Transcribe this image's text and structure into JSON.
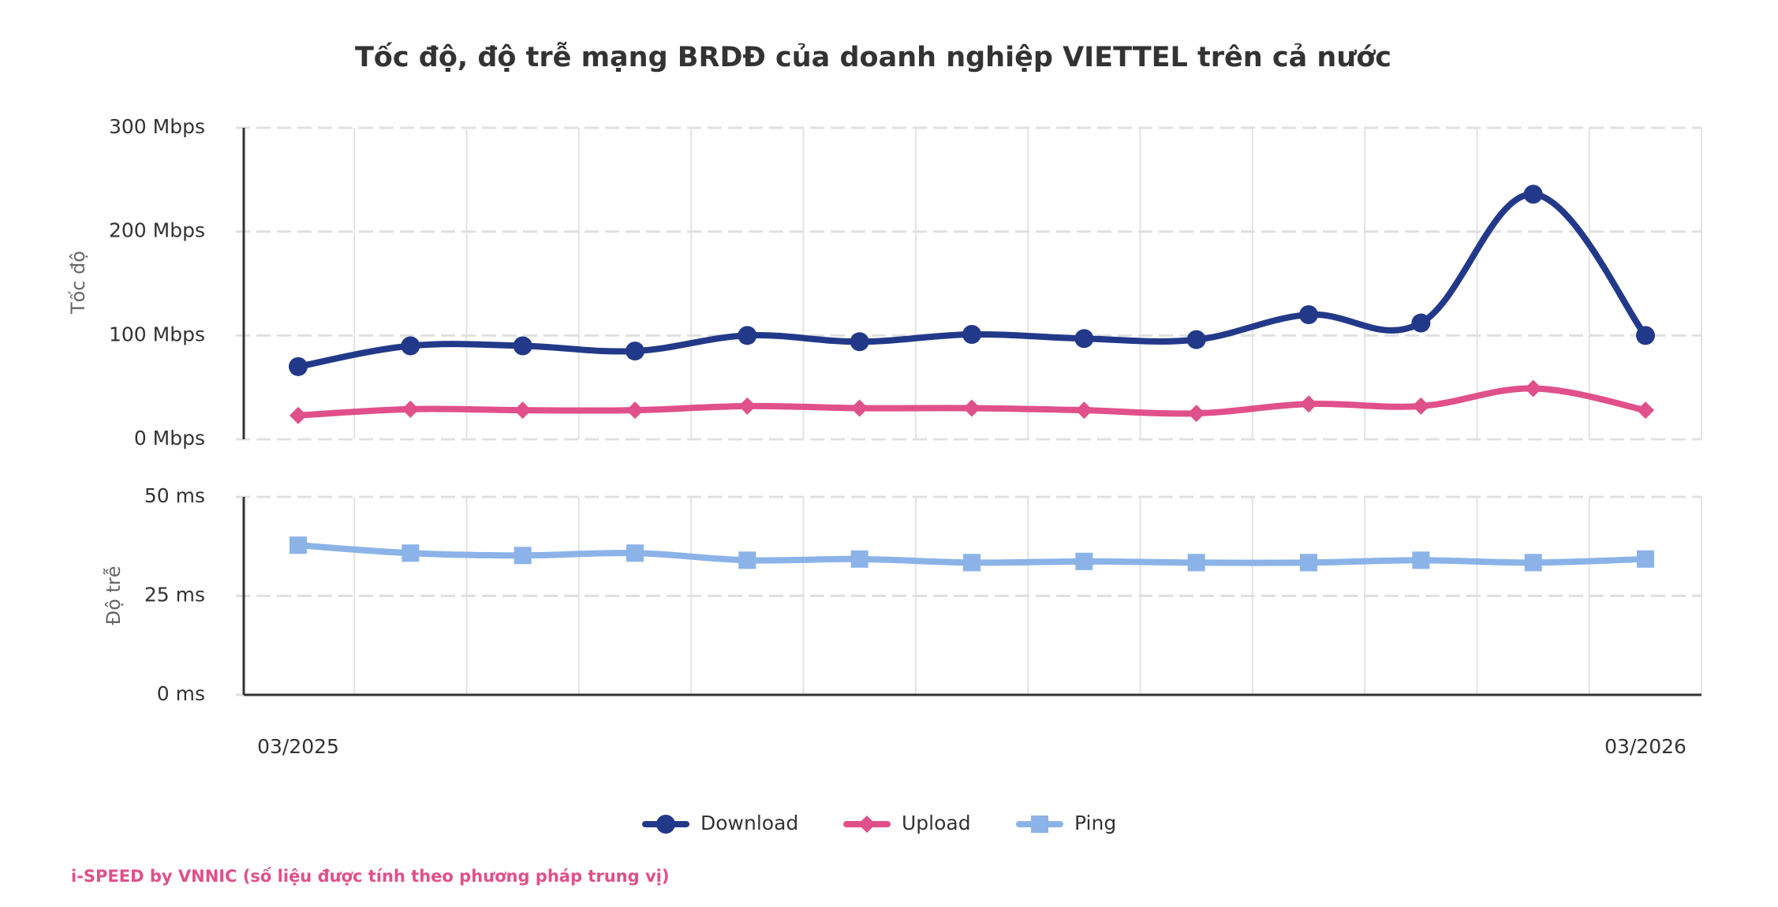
{
  "chart_data": {
    "type": "line",
    "title": "Tốc độ, độ trễ mạng BRDĐ của doanh nghiệp VIETTEL trên cả nước",
    "categories": [
      "03/2025",
      null,
      null,
      null,
      null,
      null,
      null,
      null,
      null,
      null,
      null,
      null,
      "03/2026"
    ],
    "ylabel": "Tốc độ",
    "ylim": [
      0,
      300
    ],
    "yticks": [
      {
        "value": 0,
        "label": "0 Mbps"
      },
      {
        "value": 100,
        "label": "100 Mbps"
      },
      {
        "value": 200,
        "label": "200 Mbps"
      },
      {
        "value": 300,
        "label": "300 Mbps"
      }
    ],
    "y2label": "Độ trễ",
    "y2lim": [
      0,
      50
    ],
    "y2ticks": [
      {
        "value": 0,
        "label": "0 ms"
      },
      {
        "value": 25,
        "label": "25 ms"
      },
      {
        "value": 50,
        "label": "50 ms"
      }
    ],
    "grid": true,
    "legend": "bottom",
    "series": [
      {
        "name": "Download",
        "color": "#22398a",
        "marker": "circle",
        "values": [
          70,
          90,
          90,
          85,
          100,
          94,
          101,
          97,
          96,
          120,
          112,
          236,
          100
        ]
      },
      {
        "name": "Upload",
        "color": "#e0508a",
        "marker": "diamond",
        "values": [
          23,
          29,
          28,
          28,
          32,
          30,
          30,
          28,
          25,
          34,
          32,
          49,
          28
        ]
      },
      {
        "name": "Ping",
        "color": "#8bb3e8",
        "marker": "square",
        "axis": "y2",
        "values": [
          37.8,
          35.8,
          35.2,
          35.8,
          34.0,
          34.3,
          33.4,
          33.7,
          33.4,
          33.4,
          34.0,
          33.4,
          34.3
        ]
      }
    ],
    "caption": "i-SPEED by VNNIC (số liệu được tính theo phương pháp trung vị)"
  }
}
